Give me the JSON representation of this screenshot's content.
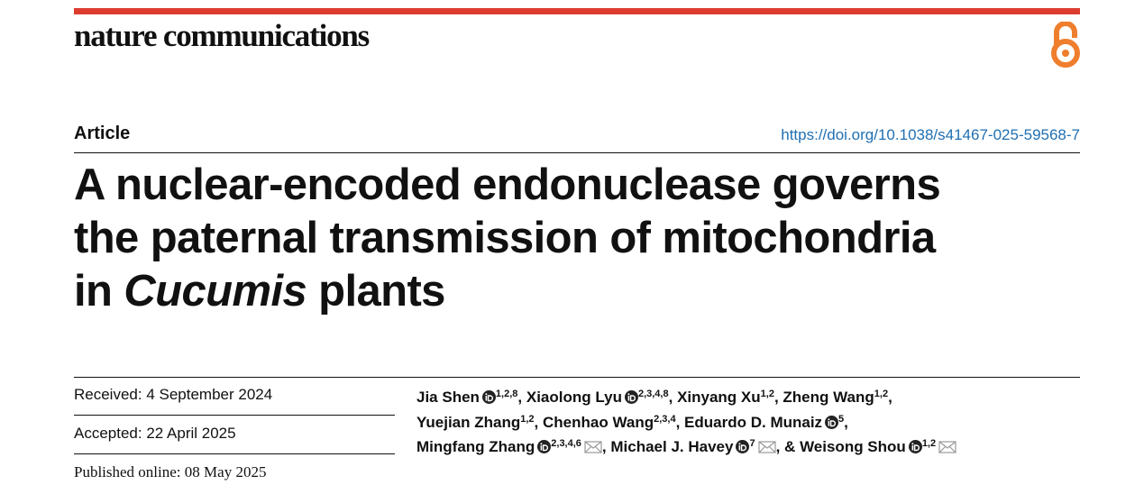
{
  "header": {
    "journal": "nature communications",
    "article_type": "Article",
    "doi": "https://doi.org/10.1038/s41467-025-59568-7"
  },
  "title": {
    "lines": [
      "A nuclear-encoded endonuclease governs",
      "the paternal transmission of mitochondria"
    ],
    "last_line": {
      "before": "in",
      "italic": "Cucumis",
      "after": "plants"
    }
  },
  "dates": {
    "received": "Received: 4 September 2024",
    "accepted": "Accepted: 22 April 2025",
    "published": "Published online: 08 May 2025"
  },
  "author_separator": ",",
  "final_conjunction": "&",
  "authors": [
    {
      "name": "Jia Shen",
      "orcid": true,
      "affiliations": "1,2,8",
      "corresponding": false
    },
    {
      "name": "Xiaolong Lyu",
      "orcid": true,
      "affiliations": "2,3,4,8",
      "corresponding": false
    },
    {
      "name": "Xinyang Xu",
      "orcid": false,
      "affiliations": "1,2",
      "corresponding": false
    },
    {
      "name": "Zheng Wang",
      "orcid": false,
      "affiliations": "1,2",
      "corresponding": false
    },
    {
      "name": "Yuejian Zhang",
      "orcid": false,
      "affiliations": "1,2",
      "corresponding": false
    },
    {
      "name": "Chenhao Wang",
      "orcid": false,
      "affiliations": "2,3,4",
      "corresponding": false
    },
    {
      "name": "Eduardo D. Munaiz",
      "orcid": true,
      "affiliations": "5",
      "corresponding": false
    },
    {
      "name": "Mingfang Zhang",
      "orcid": true,
      "affiliations": "2,3,4,6",
      "corresponding": true
    },
    {
      "name": "Michael J. Havey",
      "orcid": true,
      "affiliations": "7",
      "corresponding": true
    },
    {
      "name": "Weisong Shou",
      "orcid": true,
      "affiliations": "1,2",
      "corresponding": true
    }
  ]
}
